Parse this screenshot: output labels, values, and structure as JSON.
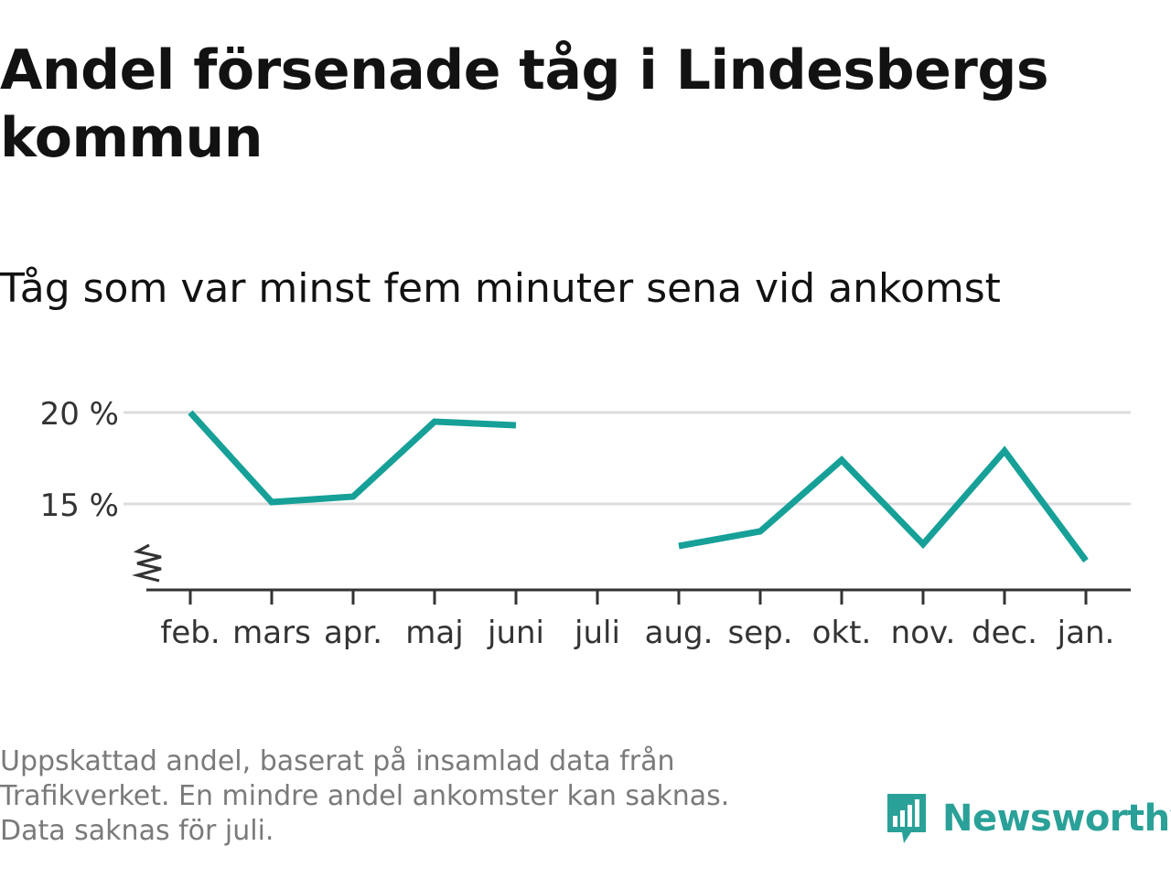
{
  "title": "Andel försenade tåg i Lindesbergs kommun",
  "subtitle": "Tåg som var minst fem minuter sena vid ankomst",
  "footnote": {
    "line1": "Uppskattad andel, baserat på insamlad data från Trafikverket. En mindre andel ankomster kan saknas.",
    "line2": "Data saknas för juli."
  },
  "logo": {
    "text": "Newsworthy",
    "icon": "newsworthy-bar-chart-bubble-icon"
  },
  "colors": {
    "line": "#16A098",
    "brand": "#2AA198",
    "grid": "#DDDDDD",
    "axis": "#333333",
    "footnote": "#7A7A7A"
  },
  "chart_data": {
    "type": "line",
    "title": "Andel försenade tåg i Lindesbergs kommun",
    "subtitle": "Tåg som var minst fem minuter sena vid ankomst",
    "categories": [
      "feb.",
      "mars",
      "apr.",
      "maj",
      "juni",
      "juli",
      "aug.",
      "sep.",
      "okt.",
      "nov.",
      "dec.",
      "jan."
    ],
    "series": [
      {
        "values": [
          20.0,
          15.1,
          15.4,
          19.5,
          19.3,
          null,
          12.7,
          13.5,
          17.4,
          12.8,
          17.9,
          11.9
        ]
      }
    ],
    "y_ticks": [
      15,
      20
    ],
    "y_tick_labels": [
      "15 %",
      "20 %"
    ],
    "ylim": [
      10.3,
      20.0
    ],
    "y_axis_break": true,
    "grid": true,
    "legend": "none",
    "xlabel": "",
    "ylabel": ""
  }
}
